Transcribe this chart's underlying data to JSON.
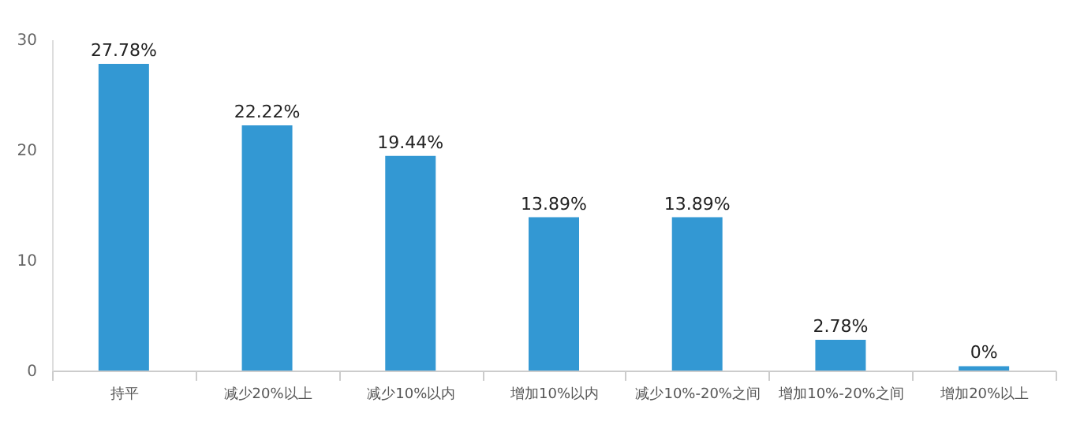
{
  "chart_data": {
    "type": "bar",
    "categories": [
      "持平",
      "减少20%以上",
      "减少10%以内",
      "增加10%以内",
      "减少10%-20%之间",
      "增加10%-20%之间",
      "增加20%以上"
    ],
    "values": [
      27.78,
      22.22,
      19.44,
      13.89,
      13.89,
      2.78,
      0.4
    ],
    "value_labels": [
      "27.78%",
      "22.22%",
      "19.44%",
      "13.89%",
      "13.89%",
      "2.78%",
      "0%"
    ],
    "color": "#3398d3",
    "ylim": [
      0,
      30
    ],
    "yticks": [
      0,
      10,
      20,
      30
    ],
    "grid": false
  }
}
